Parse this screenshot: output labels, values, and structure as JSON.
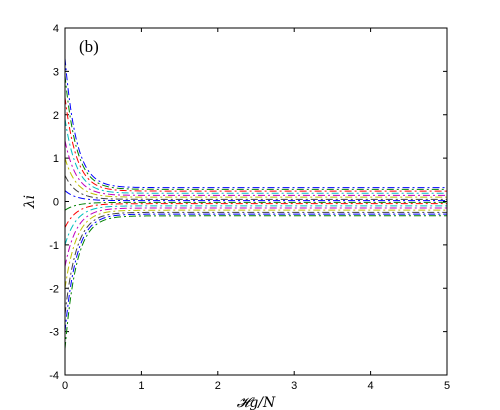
{
  "chart_data": {
    "type": "line",
    "panel_label": "(b)",
    "xlabel": "𝓗g/N",
    "ylabel": "λi",
    "xlim": [
      0,
      5
    ],
    "ylim": [
      -4,
      4
    ],
    "xticks": [
      0,
      1,
      2,
      3,
      4,
      5
    ],
    "yticks": [
      -4,
      -3,
      -2,
      -1,
      0,
      1,
      2,
      3,
      4
    ],
    "grid": false,
    "line_style": "dash-dot",
    "decay_scale": 0.15,
    "series_colors": [
      "#0000ff",
      "#008000",
      "#ff0000",
      "#00bfbf",
      "#bf00bf",
      "#bfbf00",
      "#404040"
    ],
    "series": [
      {
        "x": [
          0,
          0.05,
          0.1,
          0.2,
          0.4,
          0.7,
          1.0,
          2.0,
          3.0,
          4.0,
          5.0
        ],
        "values": [
          3.3,
          2.5,
          1.95,
          1.25,
          0.65,
          0.42,
          0.36,
          0.32,
          0.32,
          0.32,
          0.32
        ]
      },
      {
        "x": [
          0,
          0.05,
          0.1,
          0.2,
          0.4,
          0.7,
          1.0,
          2.0,
          3.0,
          4.0,
          5.0
        ],
        "values": [
          2.9,
          2.2,
          1.7,
          1.1,
          0.58,
          0.37,
          0.31,
          0.28,
          0.28,
          0.28,
          0.28
        ]
      },
      {
        "x": [
          0,
          0.05,
          0.1,
          0.2,
          0.4,
          0.7,
          1.0,
          2.0,
          3.0,
          4.0,
          5.0
        ],
        "values": [
          2.4,
          1.85,
          1.45,
          0.92,
          0.5,
          0.32,
          0.26,
          0.24,
          0.24,
          0.24,
          0.24
        ]
      },
      {
        "x": [
          0,
          0.05,
          0.1,
          0.2,
          0.4,
          0.7,
          1.0,
          2.0,
          3.0,
          4.0,
          5.0
        ],
        "values": [
          1.9,
          1.45,
          1.15,
          0.74,
          0.4,
          0.26,
          0.21,
          0.19,
          0.19,
          0.19,
          0.19
        ]
      },
      {
        "x": [
          0,
          0.05,
          0.1,
          0.2,
          0.4,
          0.7,
          1.0,
          2.0,
          3.0,
          4.0,
          5.0
        ],
        "values": [
          1.4,
          1.08,
          0.85,
          0.55,
          0.3,
          0.19,
          0.16,
          0.14,
          0.14,
          0.14,
          0.14
        ]
      },
      {
        "x": [
          0,
          0.05,
          0.1,
          0.2,
          0.4,
          0.7,
          1.0,
          2.0,
          3.0,
          4.0,
          5.0
        ],
        "values": [
          1.0,
          0.77,
          0.6,
          0.39,
          0.21,
          0.13,
          0.11,
          0.1,
          0.1,
          0.1,
          0.1
        ]
      },
      {
        "x": [
          0,
          0.05,
          0.1,
          0.2,
          0.4,
          0.7,
          1.0,
          2.0,
          3.0,
          4.0,
          5.0
        ],
        "values": [
          0.6,
          0.46,
          0.36,
          0.23,
          0.12,
          0.08,
          0.06,
          0.05,
          0.05,
          0.05,
          0.05
        ]
      },
      {
        "x": [
          0,
          0.05,
          0.1,
          0.2,
          0.4,
          0.7,
          1.0,
          2.0,
          3.0,
          4.0,
          5.0
        ],
        "values": [
          0.25,
          0.19,
          0.15,
          0.1,
          0.05,
          0.03,
          0.02,
          0.02,
          0.02,
          0.02,
          0.02
        ]
      },
      {
        "x": [
          0,
          0.05,
          0.1,
          0.2,
          0.4,
          0.7,
          1.0,
          2.0,
          3.0,
          4.0,
          5.0
        ],
        "values": [
          -0.2,
          -0.15,
          -0.12,
          -0.08,
          -0.04,
          -0.03,
          -0.02,
          -0.02,
          -0.02,
          -0.02,
          -0.02
        ]
      },
      {
        "x": [
          0,
          0.05,
          0.1,
          0.2,
          0.4,
          0.7,
          1.0,
          2.0,
          3.0,
          4.0,
          5.0
        ],
        "values": [
          -0.6,
          -0.46,
          -0.36,
          -0.23,
          -0.12,
          -0.08,
          -0.06,
          -0.05,
          -0.05,
          -0.05,
          -0.05
        ]
      },
      {
        "x": [
          0,
          0.05,
          0.1,
          0.2,
          0.4,
          0.7,
          1.0,
          2.0,
          3.0,
          4.0,
          5.0
        ],
        "values": [
          -1.0,
          -0.77,
          -0.6,
          -0.39,
          -0.21,
          -0.13,
          -0.11,
          -0.1,
          -0.1,
          -0.1,
          -0.1
        ]
      },
      {
        "x": [
          0,
          0.05,
          0.1,
          0.2,
          0.4,
          0.7,
          1.0,
          2.0,
          3.0,
          4.0,
          5.0
        ],
        "values": [
          -1.5,
          -1.15,
          -0.9,
          -0.58,
          -0.31,
          -0.2,
          -0.16,
          -0.15,
          -0.15,
          -0.15,
          -0.15
        ]
      },
      {
        "x": [
          0,
          0.05,
          0.1,
          0.2,
          0.4,
          0.7,
          1.0,
          2.0,
          3.0,
          4.0,
          5.0
        ],
        "values": [
          -2.0,
          -1.53,
          -1.2,
          -0.77,
          -0.42,
          -0.27,
          -0.22,
          -0.2,
          -0.2,
          -0.2,
          -0.2
        ]
      },
      {
        "x": [
          0,
          0.05,
          0.1,
          0.2,
          0.4,
          0.7,
          1.0,
          2.0,
          3.0,
          4.0,
          5.0
        ],
        "values": [
          -2.6,
          -2.0,
          -1.55,
          -1.0,
          -0.54,
          -0.34,
          -0.28,
          -0.25,
          -0.25,
          -0.25,
          -0.25
        ]
      },
      {
        "x": [
          0,
          0.05,
          0.1,
          0.2,
          0.4,
          0.7,
          1.0,
          2.0,
          3.0,
          4.0,
          5.0
        ],
        "values": [
          -3.0,
          -2.3,
          -1.8,
          -1.15,
          -0.6,
          -0.38,
          -0.32,
          -0.29,
          -0.29,
          -0.29,
          -0.29
        ]
      },
      {
        "x": [
          0,
          0.05,
          0.1,
          0.2,
          0.4,
          0.7,
          1.0,
          2.0,
          3.0,
          4.0,
          5.0
        ],
        "values": [
          -3.4,
          -2.6,
          -2.05,
          -1.3,
          -0.68,
          -0.43,
          -0.36,
          -0.33,
          -0.33,
          -0.33,
          -0.33
        ]
      }
    ]
  }
}
